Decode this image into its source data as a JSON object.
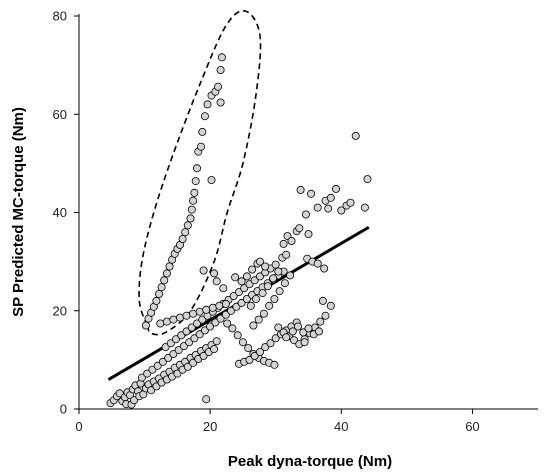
{
  "chart_data": {
    "type": "scatter",
    "title": "",
    "xlabel": "Peak dyna-torque (Nm)",
    "ylabel": "SP Predicted MC-torque (Nm)",
    "xlim": [
      0,
      70
    ],
    "ylim": [
      0,
      80
    ],
    "xticks": [
      0,
      20,
      40,
      60
    ],
    "yticks": [
      0,
      20,
      40,
      60,
      80
    ],
    "grid": false,
    "legend": "none",
    "colors": {
      "marker_fill": "#d4d4d4",
      "marker_edge": "#000000",
      "line": "#000000"
    },
    "series": [
      {
        "marker": "circle",
        "points": [
          [
            4.8,
            1.2
          ],
          [
            5.3,
            1.8
          ],
          [
            5.8,
            2.6
          ],
          [
            6.2,
            3.2
          ],
          [
            6.6,
            1.6
          ],
          [
            7.0,
            2.4
          ],
          [
            7.4,
            3.4
          ],
          [
            7.8,
            2.8
          ],
          [
            8.2,
            4.0
          ],
          [
            8.6,
            4.8
          ],
          [
            9.0,
            3.6
          ],
          [
            9.4,
            5.2
          ],
          [
            7.2,
            1.0
          ],
          [
            8.0,
            0.9
          ],
          [
            8.4,
            1.8
          ],
          [
            9.2,
            2.6
          ],
          [
            9.8,
            3.0
          ],
          [
            10.2,
            4.2
          ],
          [
            10.6,
            5.0
          ],
          [
            11.0,
            3.8
          ],
          [
            11.4,
            5.6
          ],
          [
            11.8,
            4.6
          ],
          [
            12.2,
            6.2
          ],
          [
            12.6,
            5.4
          ],
          [
            13.0,
            7.0
          ],
          [
            13.4,
            6.0
          ],
          [
            13.8,
            7.6
          ],
          [
            14.2,
            6.6
          ],
          [
            14.6,
            8.4
          ],
          [
            15.0,
            7.2
          ],
          [
            15.4,
            9.0
          ],
          [
            15.8,
            8.0
          ],
          [
            16.2,
            9.6
          ],
          [
            16.6,
            8.6
          ],
          [
            17.0,
            10.4
          ],
          [
            17.4,
            9.4
          ],
          [
            17.8,
            11.0
          ],
          [
            18.2,
            10.2
          ],
          [
            18.6,
            11.8
          ],
          [
            19.0,
            10.8
          ],
          [
            19.4,
            12.4
          ],
          [
            19.8,
            11.6
          ],
          [
            20.2,
            13.0
          ],
          [
            20.6,
            12.2
          ],
          [
            21.0,
            13.8
          ],
          [
            9.6,
            6.4
          ],
          [
            10.4,
            7.2
          ],
          [
            11.2,
            8.0
          ],
          [
            12.0,
            8.8
          ],
          [
            12.8,
            9.6
          ],
          [
            13.6,
            10.4
          ],
          [
            14.4,
            11.2
          ],
          [
            15.2,
            12.0
          ],
          [
            16.0,
            12.8
          ],
          [
            16.8,
            13.6
          ],
          [
            17.6,
            14.4
          ],
          [
            18.4,
            15.2
          ],
          [
            19.2,
            16.0
          ],
          [
            20.0,
            16.8
          ],
          [
            20.8,
            17.6
          ],
          [
            21.6,
            18.4
          ],
          [
            22.4,
            19.2
          ],
          [
            23.2,
            20.0
          ],
          [
            24.0,
            20.8
          ],
          [
            24.8,
            21.6
          ],
          [
            25.6,
            22.4
          ],
          [
            26.4,
            23.2
          ],
          [
            27.2,
            24.0
          ],
          [
            28.0,
            24.8
          ],
          [
            28.8,
            25.6
          ],
          [
            29.6,
            26.4
          ],
          [
            30.4,
            27.2
          ],
          [
            31.2,
            28.0
          ],
          [
            13.2,
            12.6
          ],
          [
            14.0,
            13.4
          ],
          [
            14.8,
            14.2
          ],
          [
            15.6,
            15.0
          ],
          [
            16.4,
            15.8
          ],
          [
            17.2,
            16.6
          ],
          [
            18.0,
            17.4
          ],
          [
            18.8,
            18.2
          ],
          [
            19.6,
            19.0
          ],
          [
            20.4,
            19.8
          ],
          [
            21.2,
            20.6
          ],
          [
            22.0,
            21.4
          ],
          [
            22.8,
            22.2
          ],
          [
            23.6,
            23.0
          ],
          [
            24.4,
            23.8
          ],
          [
            25.2,
            24.6
          ],
          [
            26.0,
            25.4
          ],
          [
            26.8,
            26.2
          ],
          [
            27.6,
            27.0
          ],
          [
            28.4,
            27.8
          ],
          [
            29.2,
            28.6
          ],
          [
            30.0,
            29.4
          ],
          [
            12.4,
            17.4
          ],
          [
            13.4,
            17.8
          ],
          [
            14.4,
            18.2
          ],
          [
            15.4,
            18.6
          ],
          [
            16.4,
            19.0
          ],
          [
            17.4,
            19.4
          ],
          [
            18.4,
            19.8
          ],
          [
            19.4,
            20.2
          ],
          [
            20.4,
            20.6
          ],
          [
            21.4,
            21.0
          ],
          [
            22.4,
            21.4
          ],
          [
            10.2,
            17.0
          ],
          [
            10.6,
            18.4
          ],
          [
            11.0,
            19.6
          ],
          [
            11.4,
            20.8
          ],
          [
            11.8,
            22.0
          ],
          [
            12.2,
            23.4
          ],
          [
            12.6,
            24.8
          ],
          [
            13.0,
            26.2
          ],
          [
            13.4,
            27.6
          ],
          [
            13.8,
            29.0
          ],
          [
            14.2,
            30.4
          ],
          [
            14.6,
            31.6
          ],
          [
            15.0,
            32.6
          ],
          [
            15.4,
            33.4
          ],
          [
            15.8,
            34.6
          ],
          [
            16.2,
            36.0
          ],
          [
            16.6,
            37.4
          ],
          [
            17.0,
            38.8
          ],
          [
            17.2,
            40.6
          ],
          [
            17.4,
            42.4
          ],
          [
            17.6,
            44.0
          ],
          [
            17.8,
            46.4
          ],
          [
            18.0,
            49.0
          ],
          [
            18.2,
            52.4
          ],
          [
            18.6,
            53.4
          ],
          [
            18.8,
            56.4
          ],
          [
            19.2,
            59.6
          ],
          [
            19.6,
            62.0
          ],
          [
            20.2,
            63.8
          ],
          [
            20.8,
            64.6
          ],
          [
            21.2,
            65.6
          ],
          [
            21.6,
            69.0
          ],
          [
            21.8,
            71.6
          ],
          [
            20.2,
            46.6
          ],
          [
            21.6,
            62.4
          ],
          [
            19.0,
            28.2
          ],
          [
            20.6,
            27.6
          ],
          [
            19.4,
            2.0
          ],
          [
            21.0,
            26.0
          ],
          [
            22.0,
            24.6
          ],
          [
            22.6,
            17.4
          ],
          [
            23.4,
            16.4
          ],
          [
            24.2,
            15.0
          ],
          [
            25.0,
            13.6
          ],
          [
            25.8,
            12.4
          ],
          [
            26.6,
            11.2
          ],
          [
            27.4,
            10.4
          ],
          [
            28.2,
            9.8
          ],
          [
            29.0,
            9.4
          ],
          [
            29.8,
            9.0
          ],
          [
            24.4,
            9.2
          ],
          [
            25.2,
            9.6
          ],
          [
            26.0,
            10.0
          ],
          [
            26.8,
            10.8
          ],
          [
            27.6,
            11.6
          ],
          [
            28.4,
            12.6
          ],
          [
            29.2,
            13.4
          ],
          [
            30.0,
            14.4
          ],
          [
            30.8,
            15.2
          ],
          [
            31.6,
            16.0
          ],
          [
            32.4,
            16.8
          ],
          [
            33.2,
            17.6
          ],
          [
            30.4,
            16.6
          ],
          [
            31.2,
            15.6
          ],
          [
            32.0,
            14.8
          ],
          [
            32.8,
            14.0
          ],
          [
            33.6,
            13.2
          ],
          [
            34.4,
            14.2
          ],
          [
            35.2,
            15.4
          ],
          [
            36.0,
            16.6
          ],
          [
            36.8,
            17.8
          ],
          [
            37.6,
            19.0
          ],
          [
            38.4,
            21.0
          ],
          [
            37.2,
            22.0
          ],
          [
            31.6,
            14.6
          ],
          [
            32.6,
            15.8
          ],
          [
            33.4,
            16.8
          ],
          [
            34.2,
            15.6
          ],
          [
            35.0,
            16.4
          ],
          [
            35.8,
            15.2
          ],
          [
            26.6,
            17.0
          ],
          [
            27.4,
            18.2
          ],
          [
            28.2,
            19.4
          ],
          [
            29.0,
            21.0
          ],
          [
            29.8,
            22.4
          ],
          [
            30.6,
            24.0
          ],
          [
            31.4,
            25.6
          ],
          [
            32.2,
            27.2
          ],
          [
            26.2,
            21.0
          ],
          [
            27.0,
            22.4
          ],
          [
            28.0,
            23.6
          ],
          [
            28.8,
            25.0
          ],
          [
            29.6,
            26.6
          ],
          [
            30.4,
            28.0
          ],
          [
            31.2,
            33.6
          ],
          [
            31.8,
            35.2
          ],
          [
            32.4,
            34.2
          ],
          [
            33.2,
            36.2
          ],
          [
            33.8,
            44.6
          ],
          [
            34.6,
            39.6
          ],
          [
            35.4,
            43.8
          ],
          [
            35.0,
            35.6
          ],
          [
            36.4,
            41.0
          ],
          [
            37.6,
            42.4
          ],
          [
            38.4,
            43.0
          ],
          [
            39.2,
            44.8
          ],
          [
            40.0,
            40.4
          ],
          [
            40.8,
            41.4
          ],
          [
            41.4,
            42.0
          ],
          [
            42.2,
            55.6
          ],
          [
            43.6,
            41.0
          ],
          [
            44.0,
            46.8
          ],
          [
            33.6,
            36.8
          ],
          [
            34.8,
            30.6
          ],
          [
            35.6,
            30.0
          ],
          [
            36.4,
            29.6
          ],
          [
            37.4,
            28.6
          ],
          [
            38.0,
            40.8
          ],
          [
            23.8,
            26.8
          ],
          [
            24.8,
            26.0
          ],
          [
            25.6,
            27.0
          ],
          [
            26.4,
            28.4
          ],
          [
            27.2,
            29.6
          ],
          [
            27.6,
            30.0
          ],
          [
            28.4,
            29.0
          ],
          [
            31.0,
            30.8
          ],
          [
            31.6,
            31.4
          ],
          [
            36.6,
            15.8
          ],
          [
            34.4,
            13.6
          ]
        ]
      }
    ],
    "trendline": {
      "x": [
        4.5,
        44.2
      ],
      "y": [
        6.0,
        37.0
      ]
    },
    "ellipse_annotation": {
      "style": "dashed",
      "points": [
        [
          10.4,
          17.0
        ],
        [
          9.2,
          22.0
        ],
        [
          9.6,
          30.0
        ],
        [
          11.4,
          40.0
        ],
        [
          14.4,
          52.0
        ],
        [
          18.4,
          66.0
        ],
        [
          22.4,
          78.0
        ],
        [
          25.4,
          81.0
        ],
        [
          27.6,
          76.0
        ],
        [
          27.0,
          64.0
        ],
        [
          25.0,
          50.0
        ],
        [
          22.6,
          40.0
        ],
        [
          20.6,
          30.0
        ],
        [
          17.0,
          20.0
        ],
        [
          13.2,
          15.6
        ],
        [
          11.0,
          15.4
        ]
      ]
    }
  }
}
